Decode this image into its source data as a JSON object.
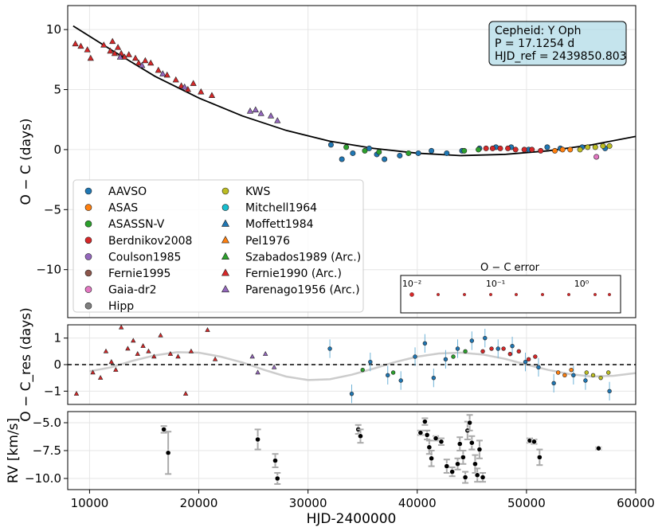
{
  "chart_data": [
    {
      "panel": "top",
      "type": "scatter",
      "ylabel": "O − C (days)",
      "ylim": [
        -14,
        12
      ],
      "yticks": [
        10,
        5,
        0,
        -5,
        -10
      ],
      "grid": true,
      "info_box": {
        "line1": "Cepheid: Y Oph",
        "line2": "P = 17.1254 d",
        "line3": "HJD_ref = 2439850.803"
      },
      "fit_curve": {
        "x": [
          8500,
          12000,
          16000,
          20000,
          24000,
          28000,
          32000,
          36000,
          40000,
          44000,
          48000,
          52000,
          56000,
          60000
        ],
        "y": [
          10.3,
          8.3,
          6.1,
          4.3,
          2.8,
          1.6,
          0.7,
          0.1,
          -0.3,
          -0.5,
          -0.4,
          -0.1,
          0.4,
          1.1
        ]
      },
      "legend": {
        "placement": "lower-left",
        "entries": [
          {
            "label": "AAVSO",
            "color": "#1f77b4",
            "marker": "circle"
          },
          {
            "label": "ASAS",
            "color": "#ff7f0e",
            "marker": "circle"
          },
          {
            "label": "ASASSN-V",
            "color": "#2ca02c",
            "marker": "circle"
          },
          {
            "label": "Berdnikov2008",
            "color": "#d62728",
            "marker": "circle"
          },
          {
            "label": "Coulson1985",
            "color": "#9467bd",
            "marker": "circle"
          },
          {
            "label": "Fernie1995",
            "color": "#8c564b",
            "marker": "circle"
          },
          {
            "label": "Gaia-dr2",
            "color": "#e377c2",
            "marker": "circle"
          },
          {
            "label": "Hipp",
            "color": "#7f7f7f",
            "marker": "circle"
          },
          {
            "label": "KWS",
            "color": "#bcbd22",
            "marker": "circle"
          },
          {
            "label": "Mitchell1964",
            "color": "#17becf",
            "marker": "circle"
          },
          {
            "label": "Moffett1984",
            "color": "#1f77b4",
            "marker": "triangle"
          },
          {
            "label": "Pel1976",
            "color": "#ff7f0e",
            "marker": "triangle"
          },
          {
            "label": "Szabados1989 (Arc.)",
            "color": "#2ca02c",
            "marker": "triangle"
          },
          {
            "label": "Fernie1990 (Arc.)",
            "color": "#d62728",
            "marker": "triangle"
          },
          {
            "label": "Parenago1956 (Arc.)",
            "color": "#9467bd",
            "marker": "triangle"
          }
        ]
      },
      "error_legend": {
        "title": "O − C error",
        "tick_labels": [
          "10⁻²",
          "10⁻¹",
          "10⁰"
        ]
      },
      "series": [
        {
          "name": "Fernie1990 (Arc.)",
          "points": [
            [
              8700,
              8.8
            ],
            [
              9200,
              8.6
            ],
            [
              9800,
              8.3
            ],
            [
              10100,
              7.6
            ],
            [
              11300,
              8.7
            ],
            [
              11900,
              8.2
            ],
            [
              12100,
              9.0
            ],
            [
              12300,
              8.0
            ],
            [
              12600,
              8.5
            ],
            [
              12900,
              8.0
            ],
            [
              13200,
              7.7
            ],
            [
              13600,
              7.9
            ],
            [
              14200,
              7.6
            ],
            [
              14500,
              7.2
            ],
            [
              15100,
              7.4
            ],
            [
              15600,
              7.2
            ],
            [
              16300,
              6.6
            ],
            [
              17100,
              6.2
            ],
            [
              17900,
              5.8
            ],
            [
              18400,
              5.3
            ],
            [
              19000,
              5.0
            ],
            [
              19500,
              5.5
            ],
            [
              20200,
              4.8
            ],
            [
              21200,
              4.5
            ]
          ]
        },
        {
          "name": "Parenago1956 (Arc.)",
          "points": [
            [
              12800,
              7.7
            ],
            [
              14800,
              7.0
            ],
            [
              16700,
              6.3
            ],
            [
              18700,
              5.2
            ],
            [
              24700,
              3.2
            ],
            [
              25200,
              3.3
            ],
            [
              25700,
              3.0
            ],
            [
              26600,
              2.8
            ],
            [
              27200,
              2.4
            ]
          ]
        },
        {
          "name": "AAVSO",
          "points": [
            [
              32100,
              0.4
            ],
            [
              33100,
              -0.8
            ],
            [
              34100,
              -0.3
            ],
            [
              35600,
              0.1
            ],
            [
              36300,
              -0.4
            ],
            [
              37000,
              -0.8
            ],
            [
              38400,
              -0.5
            ],
            [
              40100,
              -0.3
            ],
            [
              41300,
              -0.1
            ],
            [
              42700,
              -0.3
            ],
            [
              44100,
              -0.1
            ],
            [
              45700,
              0.1
            ],
            [
              47200,
              0.2
            ],
            [
              48600,
              0.2
            ],
            [
              50200,
              0.0
            ],
            [
              51900,
              0.2
            ],
            [
              53100,
              0.1
            ],
            [
              55100,
              0.2
            ],
            [
              57200,
              0.1
            ]
          ]
        },
        {
          "name": "ASASSN-V",
          "points": [
            [
              33500,
              0.2
            ],
            [
              35200,
              -0.1
            ],
            [
              36500,
              -0.2
            ],
            [
              39200,
              -0.3
            ],
            [
              44300,
              -0.1
            ],
            [
              45600,
              0.0
            ]
          ]
        },
        {
          "name": "Berdnikov2008",
          "points": [
            [
              46300,
              0.1
            ],
            [
              46900,
              0.1
            ],
            [
              47600,
              0.1
            ],
            [
              48300,
              0.1
            ],
            [
              49000,
              0.0
            ],
            [
              49800,
              0.0
            ],
            [
              50500,
              0.0
            ],
            [
              51300,
              -0.1
            ]
          ]
        },
        {
          "name": "ASAS",
          "points": [
            [
              52600,
              -0.1
            ],
            [
              53300,
              0.0
            ],
            [
              54000,
              0.0
            ]
          ]
        },
        {
          "name": "KWS",
          "points": [
            [
              54900,
              0.0
            ],
            [
              55600,
              0.2
            ],
            [
              56300,
              0.2
            ],
            [
              57000,
              0.3
            ],
            [
              57600,
              0.3
            ]
          ]
        },
        {
          "name": "Gaia-dr2",
          "points": [
            [
              56400,
              -0.6
            ]
          ]
        }
      ]
    },
    {
      "panel": "middle",
      "type": "scatter",
      "ylabel": "O − C_res (days)",
      "ylim": [
        -1.5,
        1.5
      ],
      "yticks": [
        1,
        0,
        -1
      ],
      "grid": true,
      "zero_line": true,
      "series": [
        {
          "name": "Fernie1990 (Arc.)",
          "points": [
            [
              8800,
              -1.1
            ],
            [
              10300,
              -0.3
            ],
            [
              11000,
              -0.5
            ],
            [
              11500,
              0.5
            ],
            [
              12000,
              0.1
            ],
            [
              12400,
              -0.2
            ],
            [
              12900,
              1.4
            ],
            [
              13500,
              0.6
            ],
            [
              14000,
              0.9
            ],
            [
              14400,
              0.4
            ],
            [
              14900,
              0.7
            ],
            [
              15400,
              0.5
            ],
            [
              15900,
              0.3
            ],
            [
              16500,
              1.1
            ],
            [
              17400,
              0.4
            ],
            [
              18100,
              0.3
            ],
            [
              18800,
              -1.1
            ],
            [
              19300,
              0.5
            ],
            [
              20800,
              1.3
            ],
            [
              21500,
              0.2
            ]
          ]
        },
        {
          "name": "Parenago1956 (Arc.)",
          "points": [
            [
              24900,
              0.3
            ],
            [
              25400,
              -0.3
            ],
            [
              26100,
              0.4
            ],
            [
              26900,
              -0.1
            ]
          ]
        },
        {
          "name": "AAVSO",
          "points": [
            [
              32000,
              0.6
            ],
            [
              34000,
              -1.1
            ],
            [
              35700,
              0.1
            ],
            [
              37300,
              -0.4
            ],
            [
              38500,
              -0.6
            ],
            [
              39800,
              0.3
            ],
            [
              40700,
              0.8
            ],
            [
              41500,
              -0.5
            ],
            [
              42600,
              0.2
            ],
            [
              43700,
              0.6
            ],
            [
              45000,
              0.9
            ],
            [
              46200,
              1.0
            ],
            [
              47400,
              0.6
            ],
            [
              48700,
              0.7
            ],
            [
              49900,
              0.1
            ],
            [
              51100,
              -0.1
            ],
            [
              52500,
              -0.7
            ],
            [
              54300,
              -0.4
            ],
            [
              55400,
              -0.6
            ],
            [
              57600,
              -1.0
            ]
          ]
        },
        {
          "name": "ASASSN-V",
          "points": [
            [
              35000,
              -0.2
            ],
            [
              37800,
              -0.3
            ],
            [
              43300,
              0.3
            ],
            [
              44400,
              0.5
            ]
          ]
        },
        {
          "name": "Berdnikov2008",
          "points": [
            [
              46000,
              0.5
            ],
            [
              46800,
              0.6
            ],
            [
              47900,
              0.6
            ],
            [
              48500,
              0.4
            ],
            [
              49300,
              0.5
            ],
            [
              50200,
              0.2
            ],
            [
              50800,
              0.3
            ]
          ]
        },
        {
          "name": "ASAS",
          "points": [
            [
              52900,
              -0.3
            ],
            [
              53500,
              -0.4
            ],
            [
              54100,
              -0.2
            ]
          ]
        },
        {
          "name": "KWS",
          "points": [
            [
              55500,
              -0.3
            ],
            [
              56100,
              -0.4
            ],
            [
              56800,
              -0.5
            ],
            [
              57500,
              -0.3
            ]
          ]
        }
      ],
      "model_curve": {
        "x": [
          10000,
          12000,
          14000,
          16000,
          18000,
          20000,
          22000,
          24000,
          26000,
          28000,
          30000,
          32000,
          34000,
          36000,
          38000,
          40000,
          42000,
          44000,
          46000,
          48000,
          50000,
          52000,
          54000,
          56000,
          58000,
          60000
        ],
        "y": [
          -0.25,
          -0.1,
          0.15,
          0.35,
          0.47,
          0.45,
          0.3,
          0.08,
          -0.2,
          -0.45,
          -0.58,
          -0.55,
          -0.38,
          -0.15,
          0.1,
          0.3,
          0.42,
          0.45,
          0.38,
          0.22,
          0.0,
          -0.2,
          -0.36,
          -0.45,
          -0.42,
          -0.32
        ]
      }
    },
    {
      "panel": "bottom",
      "type": "scatter",
      "ylabel": "RV [km/s]",
      "xlabel": "HJD-2400000",
      "xlim": [
        8000,
        60000
      ],
      "xticks": [
        10000,
        20000,
        30000,
        40000,
        50000,
        60000
      ],
      "ylim": [
        -11.0,
        -4.0
      ],
      "yticks": [
        -5.0,
        -7.5,
        -10.0
      ],
      "grid": true,
      "points": [
        [
          16800,
          -5.6,
          0.3
        ],
        [
          17200,
          -7.7,
          1.9
        ],
        [
          25400,
          -6.5,
          0.9
        ],
        [
          27000,
          -8.4,
          0.6
        ],
        [
          27200,
          -10.0,
          0.5
        ],
        [
          34600,
          -5.6,
          0.4
        ],
        [
          34800,
          -6.2,
          0.6
        ],
        [
          40300,
          -5.9,
          0.2
        ],
        [
          40700,
          -4.9,
          0.3
        ],
        [
          40900,
          -6.1,
          0.4
        ],
        [
          41100,
          -7.2,
          0.6
        ],
        [
          41300,
          -8.2,
          0.7
        ],
        [
          41700,
          -6.4,
          0.2
        ],
        [
          42200,
          -6.7,
          0.3
        ],
        [
          42700,
          -8.9,
          0.6
        ],
        [
          43200,
          -9.4,
          0.4
        ],
        [
          43700,
          -8.7,
          0.5
        ],
        [
          43900,
          -6.9,
          0.6
        ],
        [
          44200,
          -8.1,
          0.6
        ],
        [
          44400,
          -9.9,
          0.5
        ],
        [
          44600,
          -5.7,
          0.8
        ],
        [
          44800,
          -5.0,
          0.7
        ],
        [
          45000,
          -6.8,
          0.6
        ],
        [
          45300,
          -8.7,
          0.8
        ],
        [
          45500,
          -9.7,
          0.6
        ],
        [
          45700,
          -7.4,
          0.8
        ],
        [
          46000,
          -9.9,
          0.4
        ],
        [
          50300,
          -6.6,
          0.2
        ],
        [
          50700,
          -6.7,
          0.2
        ],
        [
          51200,
          -8.1,
          0.7
        ],
        [
          56600,
          -7.3,
          0.1
        ]
      ]
    }
  ]
}
